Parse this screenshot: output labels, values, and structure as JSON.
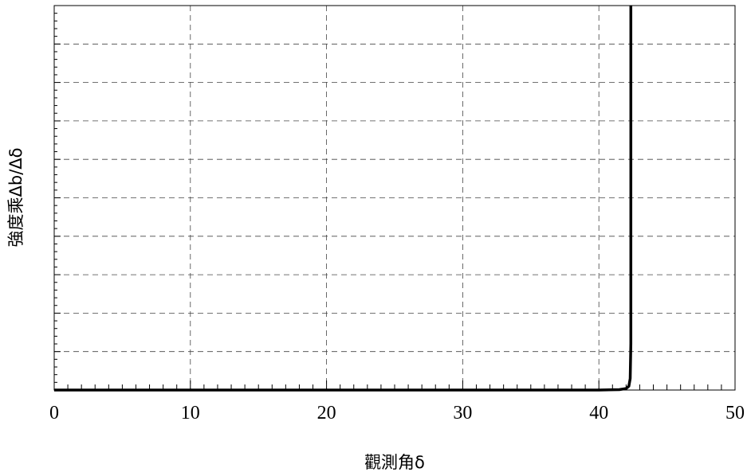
{
  "chart_data": {
    "type": "line",
    "title": "",
    "xlabel": "觀測角δ",
    "ylabel": "強度乘Δb/Δδ",
    "xlim": [
      0,
      50
    ],
    "x_ticks": [
      "0",
      "10",
      "20",
      "30",
      "40",
      "50"
    ],
    "y_ticks": [],
    "grid": true,
    "legend": "none",
    "series": [
      {
        "color": "#000000",
        "x": [
          0,
          30,
          40,
          41.5,
          42.0,
          42.2,
          42.3,
          42.35,
          42.35
        ],
        "y": [
          0,
          0,
          0,
          0.001,
          0.004,
          0.01,
          0.03,
          0.12,
          1.0
        ]
      }
    ]
  }
}
